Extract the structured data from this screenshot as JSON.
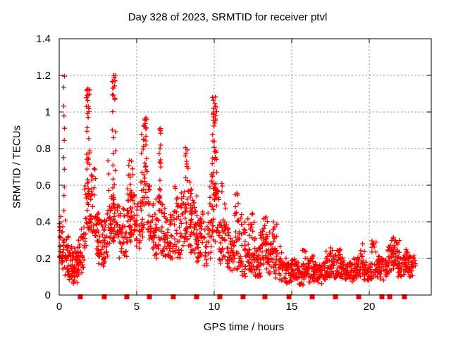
{
  "chart_data": {
    "type": "scatter",
    "title": "Day 328 of 2023, SRMTID for receiver ptvl",
    "xlabel": "GPS time / hours",
    "ylabel": "SRMTID / TECUs",
    "xlim": [
      0,
      24
    ],
    "ylim": [
      0,
      1.4
    ],
    "xticks": {
      "values": [
        0,
        5,
        10,
        15,
        20
      ],
      "labels": [
        "0",
        "5",
        "10",
        "15",
        "20"
      ]
    },
    "yticks": {
      "values": [
        0,
        0.2,
        0.4,
        0.6,
        0.8,
        1.0,
        1.2,
        1.4
      ],
      "labels": [
        "0",
        "0.2",
        "0.4",
        "0.6",
        "0.8",
        "1",
        "1.2",
        "1.4"
      ]
    },
    "grid": true,
    "legend": "none",
    "colors": {
      "points": "#ff0000",
      "grid": "#888888",
      "frame": "#000000",
      "text": "#000000",
      "background": "#ffffff"
    },
    "marker": "plus",
    "density_scale": 1.5,
    "series": [
      {
        "name": "srmtid",
        "marker": "plus",
        "columns_format": [
          "hour",
          "y_min",
          "y_max",
          "count",
          "tail_top",
          "tail_count"
        ],
        "columns": [
          [
            0.08,
            0.15,
            0.45,
            12
          ],
          [
            0.3,
            0.14,
            0.42,
            12,
            1.24,
            11
          ],
          [
            0.5,
            0.1,
            0.34,
            14
          ],
          [
            0.7,
            0.08,
            0.3,
            14
          ],
          [
            0.9,
            0.06,
            0.26,
            14
          ],
          [
            1.1,
            0.06,
            0.24,
            12
          ],
          [
            1.3,
            0.08,
            0.3,
            12
          ],
          [
            1.5,
            0.12,
            0.36,
            12
          ],
          [
            1.7,
            0.25,
            0.6,
            10
          ],
          [
            1.85,
            0.35,
            0.95,
            16,
            1.13,
            6
          ],
          [
            1.88,
            1.0,
            1.13,
            6
          ],
          [
            2.0,
            0.35,
            0.8,
            12
          ],
          [
            2.2,
            0.3,
            0.72,
            12
          ],
          [
            2.4,
            0.2,
            0.5,
            12
          ],
          [
            2.6,
            0.17,
            0.45,
            12
          ],
          [
            2.8,
            0.15,
            0.42,
            12
          ],
          [
            3.0,
            0.18,
            0.45,
            12
          ],
          [
            3.2,
            0.22,
            0.5,
            10,
            0.8,
            3
          ],
          [
            3.45,
            0.3,
            0.6,
            12,
            1.02,
            6
          ],
          [
            3.48,
            1.05,
            1.2,
            9
          ],
          [
            3.6,
            0.28,
            0.55,
            10,
            0.95,
            4
          ],
          [
            3.8,
            0.25,
            0.5,
            10
          ],
          [
            4.0,
            0.2,
            0.46,
            12
          ],
          [
            4.25,
            0.2,
            0.48,
            12
          ],
          [
            4.5,
            0.28,
            0.62,
            14,
            0.77,
            3
          ],
          [
            4.7,
            0.32,
            0.66,
            14,
            0.76,
            2
          ],
          [
            4.9,
            0.28,
            0.55,
            12
          ],
          [
            5.1,
            0.25,
            0.5,
            10
          ],
          [
            5.35,
            0.3,
            0.62,
            12,
            0.9,
            3
          ],
          [
            5.55,
            0.45,
            0.85,
            12,
            0.98,
            4
          ],
          [
            5.57,
            0.8,
            0.98,
            8
          ],
          [
            5.75,
            0.3,
            0.6,
            10
          ],
          [
            5.95,
            0.25,
            0.5,
            10
          ],
          [
            6.15,
            0.2,
            0.46,
            10
          ],
          [
            6.35,
            0.25,
            0.55,
            10
          ],
          [
            6.5,
            0.3,
            0.93,
            18
          ],
          [
            6.7,
            0.2,
            0.5,
            10
          ],
          [
            6.9,
            0.2,
            0.45,
            10
          ],
          [
            7.1,
            0.17,
            0.42,
            10
          ],
          [
            7.3,
            0.2,
            0.48,
            10
          ],
          [
            7.55,
            0.22,
            0.62,
            12
          ],
          [
            7.75,
            0.2,
            0.5,
            12
          ],
          [
            8.0,
            0.25,
            0.6,
            12
          ],
          [
            8.2,
            0.3,
            0.82,
            16
          ],
          [
            8.4,
            0.25,
            0.7,
            14
          ],
          [
            8.6,
            0.2,
            0.52,
            12
          ],
          [
            8.8,
            0.2,
            0.55,
            12
          ],
          [
            9.0,
            0.18,
            0.45,
            12
          ],
          [
            9.2,
            0.2,
            0.5,
            12
          ],
          [
            9.45,
            0.15,
            0.4,
            10
          ],
          [
            9.7,
            0.2,
            0.5,
            10,
            0.65,
            2
          ],
          [
            9.9,
            0.3,
            0.8,
            14,
            1.1,
            5
          ],
          [
            10.05,
            0.5,
            1.0,
            14,
            1.1,
            3
          ],
          [
            10.07,
            0.95,
            1.1,
            6
          ],
          [
            10.2,
            0.25,
            0.6,
            10,
            0.8,
            2
          ],
          [
            10.4,
            0.15,
            0.4,
            10
          ],
          [
            10.6,
            0.2,
            0.62,
            12
          ],
          [
            10.8,
            0.15,
            0.4,
            10
          ],
          [
            11.0,
            0.12,
            0.35,
            10
          ],
          [
            11.2,
            0.12,
            0.3,
            10
          ],
          [
            11.45,
            0.14,
            0.56,
            14
          ],
          [
            11.65,
            0.12,
            0.45,
            12
          ],
          [
            11.9,
            0.1,
            0.45,
            12
          ],
          [
            12.1,
            0.1,
            0.3,
            10
          ],
          [
            12.3,
            0.12,
            0.42,
            12
          ],
          [
            12.5,
            0.14,
            0.45,
            12
          ],
          [
            12.7,
            0.1,
            0.3,
            10
          ],
          [
            12.9,
            0.1,
            0.28,
            10
          ],
          [
            13.1,
            0.14,
            0.38,
            12
          ],
          [
            13.3,
            0.15,
            0.45,
            14
          ],
          [
            13.5,
            0.12,
            0.38,
            12
          ],
          [
            13.7,
            0.1,
            0.3,
            10
          ],
          [
            13.9,
            0.12,
            0.42,
            12
          ],
          [
            14.1,
            0.08,
            0.25,
            10
          ],
          [
            14.35,
            0.08,
            0.27,
            12
          ],
          [
            14.6,
            0.06,
            0.2,
            12
          ],
          [
            14.85,
            0.06,
            0.18,
            12
          ],
          [
            15.1,
            0.07,
            0.2,
            12
          ],
          [
            15.35,
            0.06,
            0.18,
            12
          ],
          [
            15.6,
            0.05,
            0.17,
            12
          ],
          [
            15.8,
            0.08,
            0.25,
            12
          ],
          [
            16.05,
            0.07,
            0.2,
            12
          ],
          [
            16.3,
            0.09,
            0.22,
            12
          ],
          [
            16.55,
            0.07,
            0.18,
            12
          ],
          [
            16.8,
            0.06,
            0.17,
            12
          ],
          [
            17.05,
            0.08,
            0.18,
            12
          ],
          [
            17.3,
            0.09,
            0.24,
            12
          ],
          [
            17.55,
            0.1,
            0.26,
            14
          ],
          [
            17.8,
            0.09,
            0.22,
            12
          ],
          [
            18.05,
            0.1,
            0.25,
            14
          ],
          [
            18.3,
            0.09,
            0.22,
            12
          ],
          [
            18.55,
            0.08,
            0.18,
            12
          ],
          [
            18.8,
            0.07,
            0.18,
            12
          ],
          [
            19.05,
            0.08,
            0.2,
            12
          ],
          [
            19.3,
            0.09,
            0.22,
            12
          ],
          [
            19.55,
            0.1,
            0.28,
            12
          ],
          [
            19.8,
            0.08,
            0.18,
            12
          ],
          [
            20.05,
            0.08,
            0.18,
            12
          ],
          [
            20.3,
            0.1,
            0.3,
            12
          ],
          [
            20.55,
            0.09,
            0.22,
            12
          ],
          [
            20.8,
            0.08,
            0.2,
            12
          ],
          [
            21.05,
            0.1,
            0.22,
            12
          ],
          [
            21.3,
            0.12,
            0.28,
            12
          ],
          [
            21.55,
            0.14,
            0.3,
            14,
            0.32,
            2
          ],
          [
            21.8,
            0.14,
            0.32,
            14
          ],
          [
            22.0,
            0.1,
            0.25,
            12
          ],
          [
            22.2,
            0.1,
            0.22,
            10
          ],
          [
            22.45,
            0.12,
            0.26,
            12
          ],
          [
            22.65,
            0.1,
            0.22,
            10
          ],
          [
            22.85,
            0.12,
            0.22,
            8
          ]
        ]
      },
      {
        "name": "baseline-event-markers",
        "marker": "filled-square",
        "y": 0,
        "x_hours": [
          1.36,
          2.91,
          4.36,
          5.82,
          7.36,
          8.86,
          10.36,
          11.86,
          13.27,
          14.82,
          16.32,
          17.82,
          19.32,
          20.82,
          21.32,
          22.27
        ]
      }
    ]
  }
}
